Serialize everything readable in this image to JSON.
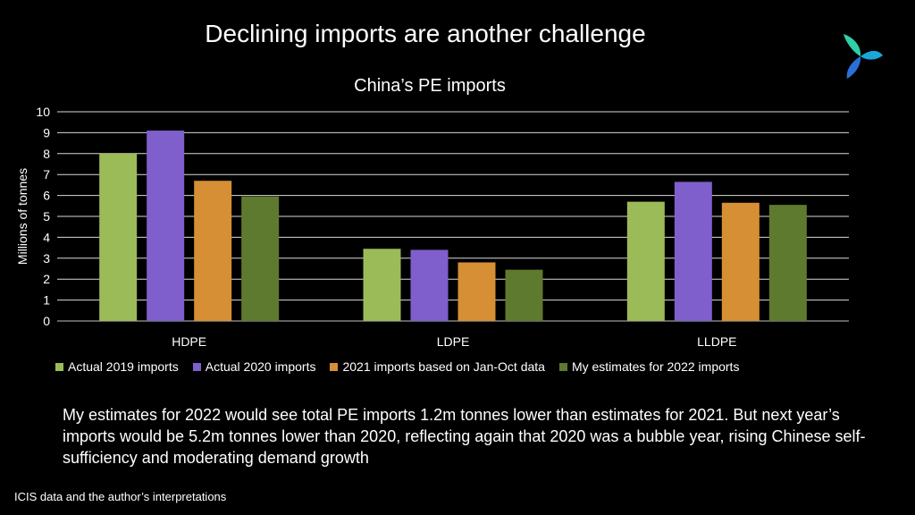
{
  "slide": {
    "title": "Declining imports are another challenge",
    "commentary": "My estimates for 2022 would see total PE imports 1.2m tonnes lower than estimates for 2021. But next year’s imports would be 5.2m tonnes lower than 2020, reflecting again that 2020 was a bubble year, rising Chinese self-sufficiency and moderating demand growth",
    "source": "ICIS data and the author’s interpretations",
    "logo_icon": "tri-leaf-logo-icon"
  },
  "chart_data": {
    "type": "bar",
    "title": "China’s PE imports",
    "ylabel": "Millions of tonnes",
    "xlabel": "",
    "ylim": [
      0,
      10
    ],
    "yticks": [
      0,
      1,
      2,
      3,
      4,
      5,
      6,
      7,
      8,
      9,
      10
    ],
    "grid": true,
    "legend_position": "bottom",
    "categories": [
      "HDPE",
      "LDPE",
      "LLDPE"
    ],
    "series": [
      {
        "name": "Actual 2019 imports",
        "color": "#9bbb59",
        "values": [
          8.0,
          3.45,
          5.7
        ]
      },
      {
        "name": "Actual 2020 imports",
        "color": "#7e5fcb",
        "values": [
          9.1,
          3.4,
          6.65
        ]
      },
      {
        "name": "2021 imports based on Jan-Oct data",
        "color": "#d68f34",
        "values": [
          6.7,
          2.8,
          5.65
        ]
      },
      {
        "name": "My estimates for 2022 imports",
        "color": "#5e7a2e",
        "values": [
          5.95,
          2.45,
          5.55
        ]
      }
    ]
  }
}
